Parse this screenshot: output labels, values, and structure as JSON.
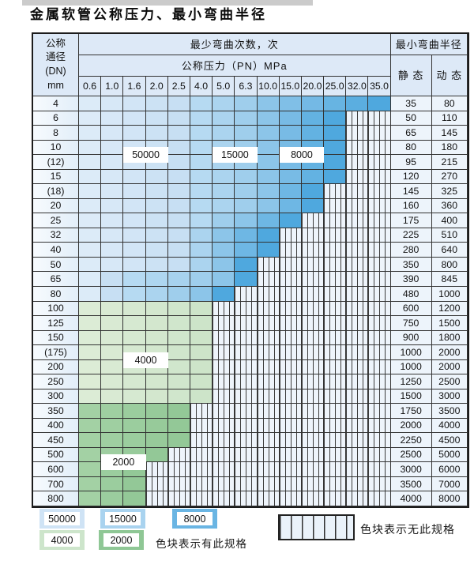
{
  "title": "金属软管公称压力、最小弯曲半径",
  "header": {
    "dn_lines": [
      "公称",
      "通径",
      "(DN)",
      "mm"
    ],
    "bend_cycles": "最少弯曲次数，次",
    "pressure": "公称压力（PN）MPa",
    "pressures": [
      "0.6",
      "1.0",
      "1.6",
      "2.0",
      "2.5",
      "4.0",
      "5.0",
      "6.3",
      "10.0",
      "15.0",
      "20.0",
      "25.0",
      "32.0",
      "35.0"
    ],
    "radius": "最小弯曲半径",
    "static": "静 态",
    "dynamic": "动 态"
  },
  "zones": {
    "A": {
      "cycles": "50000",
      "start": "#dcebf8",
      "end": "#c7dff3"
    },
    "B": {
      "cycles": "15000",
      "start": "#b6daf2",
      "end": "#9fceec"
    },
    "C": {
      "cycles": "8000",
      "start": "#8cc5e9",
      "end": "#4fa8de"
    },
    "D": {
      "cycles": "4000",
      "start": "#dcecd6",
      "end": "#cde4c9"
    },
    "E": {
      "cycles": "2000",
      "start": "#a3d1a4",
      "end": "#93c897"
    },
    "hatch_bg": "#eef4fb",
    "hatch_line": "#3c3c3c"
  },
  "table": {
    "rows": [
      {
        "dn": "4",
        "static": "35",
        "dynamic": "80",
        "cells": "AAAAABBBCCCCCC"
      },
      {
        "dn": "6",
        "static": "50",
        "dynamic": "110",
        "cells": "AAAAABBBCCCCXX"
      },
      {
        "dn": "8",
        "static": "65",
        "dynamic": "145",
        "cells": "AAAAABBBCCCCXX"
      },
      {
        "dn": "10",
        "static": "80",
        "dynamic": "180",
        "cells": "AAAAABBBCCCCXX"
      },
      {
        "dn": "(12)",
        "static": "95",
        "dynamic": "215",
        "cells": "AAAAABBBCCCCXX"
      },
      {
        "dn": "15",
        "static": "120",
        "dynamic": "270",
        "cells": "AAAAABBBCCCCXX"
      },
      {
        "dn": "(18)",
        "static": "145",
        "dynamic": "325",
        "cells": "AAAAABBBCCCXXX"
      },
      {
        "dn": "20",
        "static": "160",
        "dynamic": "360",
        "cells": "AAAAABBBCCCXXX"
      },
      {
        "dn": "25",
        "static": "175",
        "dynamic": "400",
        "cells": "AAAAABBCCCXXXX"
      },
      {
        "dn": "32",
        "static": "225",
        "dynamic": "510",
        "cells": "AAAAABCCCXXXXX"
      },
      {
        "dn": "40",
        "static": "280",
        "dynamic": "640",
        "cells": "AAAAABCCCXXXXX"
      },
      {
        "dn": "50",
        "static": "350",
        "dynamic": "800",
        "cells": "AAAAABCCXXXXXX"
      },
      {
        "dn": "65",
        "static": "390",
        "dynamic": "845",
        "cells": "AABBBBCCXXXXXX"
      },
      {
        "dn": "80",
        "static": "480",
        "dynamic": "1000",
        "cells": "AABBBCCXXXXXXX"
      },
      {
        "dn": "100",
        "static": "600",
        "dynamic": "1200",
        "cells": "DDDDDDXXXXXXXX"
      },
      {
        "dn": "125",
        "static": "750",
        "dynamic": "1500",
        "cells": "DDDDDDXXXXXXXX"
      },
      {
        "dn": "150",
        "static": "900",
        "dynamic": "1800",
        "cells": "DDDDDDXXXXXXXX"
      },
      {
        "dn": "(175)",
        "static": "1000",
        "dynamic": "2000",
        "cells": "DDDDDDXXXXXXXX"
      },
      {
        "dn": "200",
        "static": "1000",
        "dynamic": "2000",
        "cells": "DDDDDDXXXXXXXX"
      },
      {
        "dn": "250",
        "static": "1250",
        "dynamic": "2500",
        "cells": "DDDDDDXXXXXXXX"
      },
      {
        "dn": "300",
        "static": "1500",
        "dynamic": "3000",
        "cells": "DDDDDDXXXXXXXX"
      },
      {
        "dn": "350",
        "static": "1750",
        "dynamic": "3500",
        "cells": "EEEEEXXXXXXXXX"
      },
      {
        "dn": "400",
        "static": "2000",
        "dynamic": "4000",
        "cells": "EEEEEXXXXXXXXX"
      },
      {
        "dn": "450",
        "static": "2250",
        "dynamic": "4500",
        "cells": "EEEEEXXXXXXXXX"
      },
      {
        "dn": "500",
        "static": "2500",
        "dynamic": "5000",
        "cells": "EEEEXXXXXXXXXX"
      },
      {
        "dn": "600",
        "static": "3000",
        "dynamic": "6000",
        "cells": "EEEXXXXXXXXXXX"
      },
      {
        "dn": "700",
        "static": "3500",
        "dynamic": "7000",
        "cells": "EEEXXXXXXXXXXX"
      },
      {
        "dn": "800",
        "static": "4000",
        "dynamic": "8000",
        "cells": "EEEXXXXXXXXXXX"
      }
    ]
  },
  "zone_labels": [
    {
      "text": "50000",
      "col_start": 2,
      "span": 2,
      "row_boundary": 4
    },
    {
      "text": "15000",
      "col_start": 6,
      "span": 2,
      "row_boundary": 4
    },
    {
      "text": "8000",
      "col_start": 9,
      "span": 2,
      "row_boundary": 4
    },
    {
      "text": "4000",
      "col_start": 2,
      "span": 2,
      "row_boundary": 18
    },
    {
      "text": "2000",
      "col_start": 1,
      "span": 2,
      "row_boundary": 25
    }
  ],
  "legend": {
    "items": [
      {
        "label": "50000",
        "color": "#cfe3f5"
      },
      {
        "label": "15000",
        "color": "#a9d3ef"
      },
      {
        "label": "8000",
        "color": "#6ab5e3"
      },
      {
        "label": "4000",
        "color": "#cde5cb"
      },
      {
        "label": "2000",
        "color": "#8fc795"
      }
    ],
    "available_label": "色块表示有此规格",
    "unavailable_label": "色块表示无此规格"
  }
}
